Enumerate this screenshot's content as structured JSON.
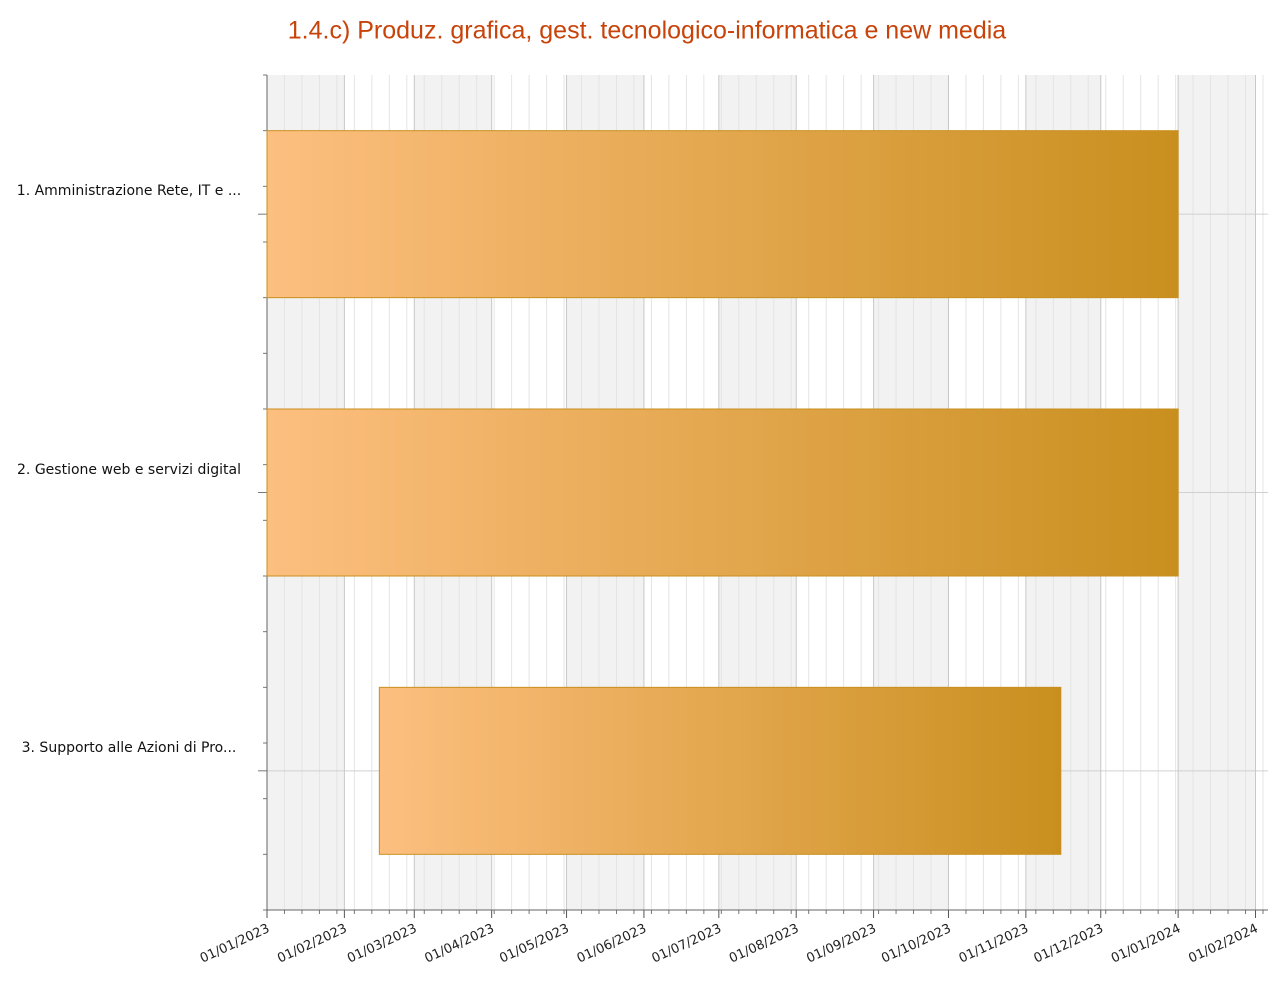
{
  "chart_data": {
    "type": "gantt",
    "title": "1.4.c) Produz. grafica, gest. tecnologico-informatica e new media",
    "categories": [
      "1. Amministrazione Rete, IT e ...",
      "2. Gestione web e servizi digital",
      "3. Supporto alle Azioni di Pro..."
    ],
    "start": [
      "2023-01-01",
      "2023-01-01",
      "2023-02-15"
    ],
    "end": [
      "2024-01-01",
      "2024-01-01",
      "2023-11-15"
    ],
    "color": [
      "#fdbf7f",
      "#c98f1e"
    ],
    "xlim": [
      "2023-01-01",
      "2024-02-06"
    ],
    "xticks": [
      {
        "value": "2023-01-01",
        "label": "01/01/2023"
      },
      {
        "value": "2023-02-01",
        "label": "01/02/2023"
      },
      {
        "value": "2023-03-01",
        "label": "01/03/2023"
      },
      {
        "value": "2023-04-01",
        "label": "01/04/2023"
      },
      {
        "value": "2023-05-01",
        "label": "01/05/2023"
      },
      {
        "value": "2023-06-01",
        "label": "01/06/2023"
      },
      {
        "value": "2023-07-01",
        "label": "01/07/2023"
      },
      {
        "value": "2023-08-01",
        "label": "01/08/2023"
      },
      {
        "value": "2023-09-01",
        "label": "01/09/2023"
      },
      {
        "value": "2023-10-01",
        "label": "01/10/2023"
      },
      {
        "value": "2023-11-01",
        "label": "01/11/2023"
      },
      {
        "value": "2023-12-01",
        "label": "01/12/2023"
      },
      {
        "value": "2024-01-01",
        "label": "01/01/2024"
      },
      {
        "value": "2024-02-01",
        "label": "01/02/2024"
      }
    ],
    "grid": true
  }
}
